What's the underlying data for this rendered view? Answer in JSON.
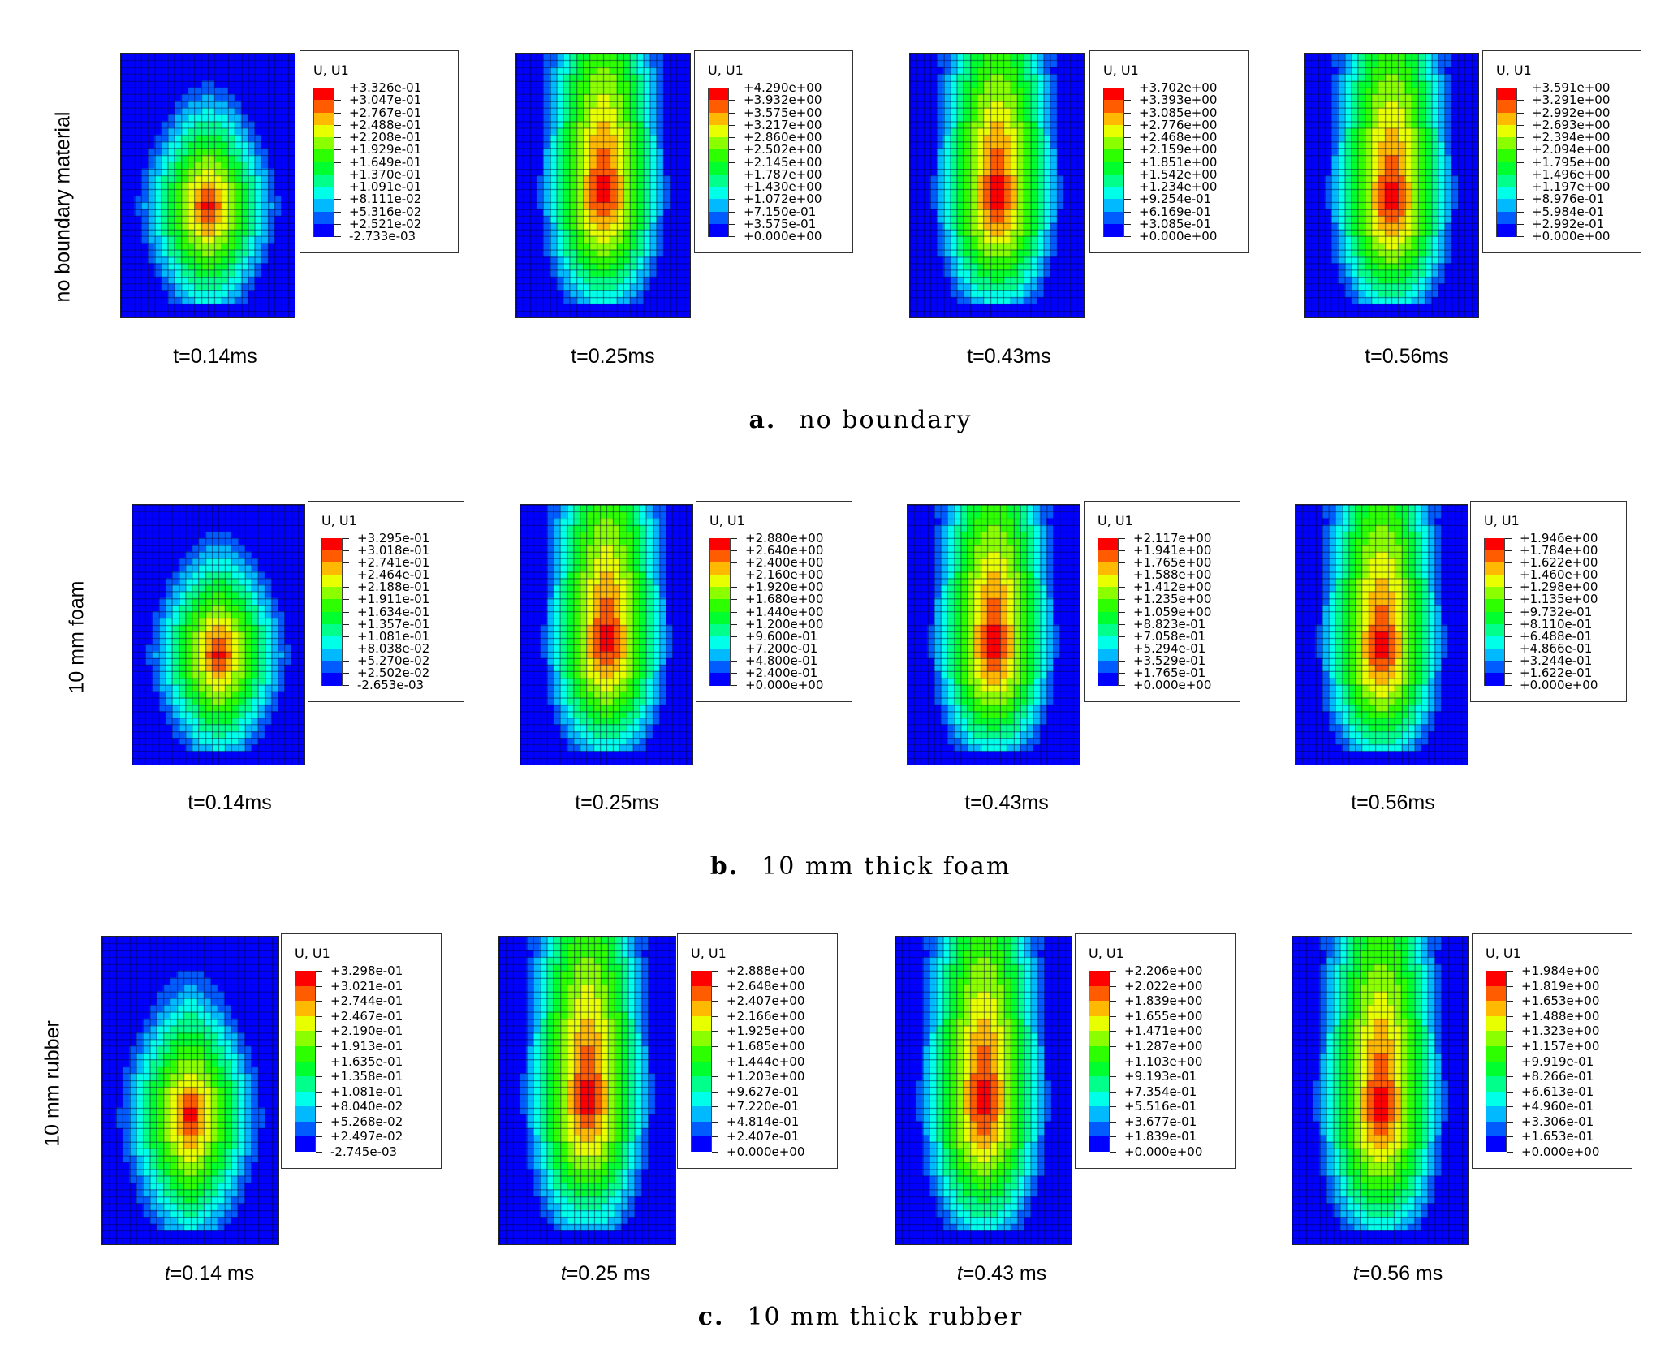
{
  "legend_title": "U, U1",
  "colormap": [
    "#0000ff",
    "#005cff",
    "#00b9ff",
    "#00ffe8",
    "#00ff8b",
    "#00ff2e",
    "#2eff00",
    "#8bff00",
    "#e8ff00",
    "#ffb900",
    "#ff5c00",
    "#ff0000"
  ],
  "rows": [
    {
      "row_label": "no boundary material",
      "caption_letter": "a.",
      "caption_text": "no boundary",
      "italic_t": false,
      "panels": [
        {
          "time_label": "t=0.14ms",
          "legend_values": [
            "+3.326e-01",
            "+3.047e-01",
            "+2.767e-01",
            "+2.488e-01",
            "+2.208e-01",
            "+1.929e-01",
            "+1.649e-01",
            "+1.370e-01",
            "+1.091e-01",
            "+8.111e-02",
            "+5.316e-02",
            "+2.521e-02",
            "-2.733e-03"
          ]
        },
        {
          "time_label": "t=0.25ms",
          "legend_values": [
            "+4.290e+00",
            "+3.932e+00",
            "+3.575e+00",
            "+3.217e+00",
            "+2.860e+00",
            "+2.502e+00",
            "+2.145e+00",
            "+1.787e+00",
            "+1.430e+00",
            "+1.072e+00",
            "+7.150e-01",
            "+3.575e-01",
            "+0.000e+00"
          ]
        },
        {
          "time_label": "t=0.43ms",
          "legend_values": [
            "+3.702e+00",
            "+3.393e+00",
            "+3.085e+00",
            "+2.776e+00",
            "+2.468e+00",
            "+2.159e+00",
            "+1.851e+00",
            "+1.542e+00",
            "+1.234e+00",
            "+9.254e-01",
            "+6.169e-01",
            "+3.085e-01",
            "+0.000e+00"
          ]
        },
        {
          "time_label": "t=0.56ms",
          "legend_values": [
            "+3.591e+00",
            "+3.291e+00",
            "+2.992e+00",
            "+2.693e+00",
            "+2.394e+00",
            "+2.094e+00",
            "+1.795e+00",
            "+1.496e+00",
            "+1.197e+00",
            "+8.976e-01",
            "+5.984e-01",
            "+2.992e-01",
            "+0.000e+00"
          ]
        }
      ]
    },
    {
      "row_label": "10 mm foam",
      "caption_letter": "b.",
      "caption_text": "10 mm thick foam",
      "italic_t": false,
      "panels": [
        {
          "time_label": "t=0.14ms",
          "legend_values": [
            "+3.295e-01",
            "+3.018e-01",
            "+2.741e-01",
            "+2.464e-01",
            "+2.188e-01",
            "+1.911e-01",
            "+1.634e-01",
            "+1.357e-01",
            "+1.081e-01",
            "+8.038e-02",
            "+5.270e-02",
            "+2.502e-02",
            "-2.653e-03"
          ]
        },
        {
          "time_label": "t=0.25ms",
          "legend_values": [
            "+2.880e+00",
            "+2.640e+00",
            "+2.400e+00",
            "+2.160e+00",
            "+1.920e+00",
            "+1.680e+00",
            "+1.440e+00",
            "+1.200e+00",
            "+9.600e-01",
            "+7.200e-01",
            "+4.800e-01",
            "+2.400e-01",
            "+0.000e+00"
          ]
        },
        {
          "time_label": "t=0.43ms",
          "legend_values": [
            "+2.117e+00",
            "+1.941e+00",
            "+1.765e+00",
            "+1.588e+00",
            "+1.412e+00",
            "+1.235e+00",
            "+1.059e+00",
            "+8.823e-01",
            "+7.058e-01",
            "+5.294e-01",
            "+3.529e-01",
            "+1.765e-01",
            "+0.000e+00"
          ]
        },
        {
          "time_label": "t=0.56ms",
          "legend_values": [
            "+1.946e+00",
            "+1.784e+00",
            "+1.622e+00",
            "+1.460e+00",
            "+1.298e+00",
            "+1.135e+00",
            "+9.732e-01",
            "+8.110e-01",
            "+6.488e-01",
            "+4.866e-01",
            "+3.244e-01",
            "+1.622e-01",
            "+0.000e+00"
          ]
        }
      ]
    },
    {
      "row_label": "10 mm rubber",
      "caption_letter": "c.",
      "caption_text": "10 mm thick rubber",
      "italic_t": true,
      "panels": [
        {
          "time_label": "=0.14 ms",
          "legend_values": [
            "+3.298e-01",
            "+3.021e-01",
            "+2.744e-01",
            "+2.467e-01",
            "+2.190e-01",
            "+1.913e-01",
            "+1.635e-01",
            "+1.358e-01",
            "+1.081e-01",
            "+8.040e-02",
            "+5.268e-02",
            "+2.497e-02",
            "-2.745e-03"
          ]
        },
        {
          "time_label": "=0.25 ms",
          "legend_values": [
            "+2.888e+00",
            "+2.648e+00",
            "+2.407e+00",
            "+2.166e+00",
            "+1.925e+00",
            "+1.685e+00",
            "+1.444e+00",
            "+1.203e+00",
            "+9.627e-01",
            "+7.220e-01",
            "+4.814e-01",
            "+2.407e-01",
            "+0.000e+00"
          ]
        },
        {
          "time_label": "=0.43 ms",
          "legend_values": [
            "+2.206e+00",
            "+2.022e+00",
            "+1.839e+00",
            "+1.655e+00",
            "+1.471e+00",
            "+1.287e+00",
            "+1.103e+00",
            "+9.193e-01",
            "+7.354e-01",
            "+5.516e-01",
            "+3.677e-01",
            "+1.839e-01",
            "+0.000e+00"
          ]
        },
        {
          "time_label": "=0.56 ms",
          "legend_values": [
            "+1.984e+00",
            "+1.819e+00",
            "+1.653e+00",
            "+1.488e+00",
            "+1.323e+00",
            "+1.157e+00",
            "+9.919e-01",
            "+8.266e-01",
            "+6.613e-01",
            "+4.960e-01",
            "+3.306e-01",
            "+1.653e-01",
            "+0.000e+00"
          ]
        }
      ]
    }
  ]
}
